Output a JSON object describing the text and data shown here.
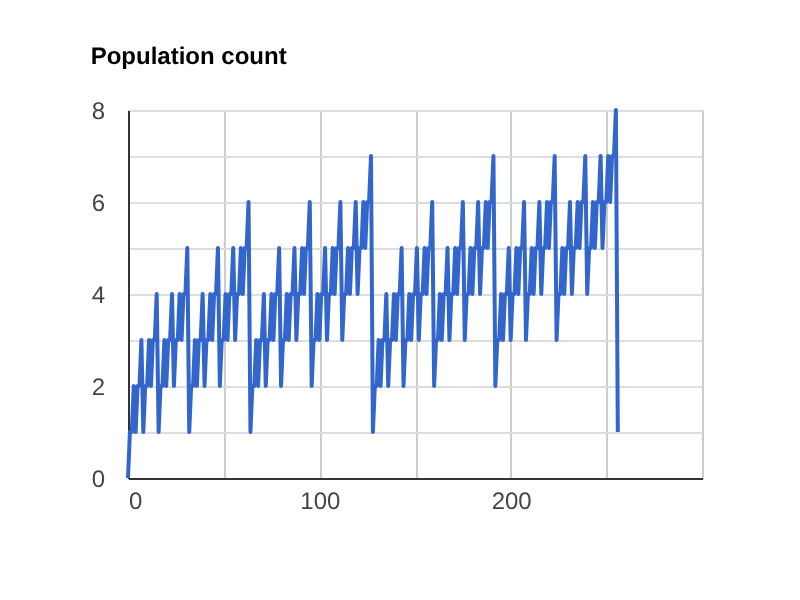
{
  "chart_data": {
    "type": "line",
    "title": "Population count",
    "x": [
      0,
      1,
      2,
      3,
      4,
      5,
      6,
      7,
      8,
      9,
      10,
      11,
      12,
      13,
      14,
      15,
      16,
      17,
      18,
      19,
      20,
      21,
      22,
      23,
      24,
      25,
      26,
      27,
      28,
      29,
      30,
      31,
      32,
      33,
      34,
      35,
      36,
      37,
      38,
      39,
      40,
      41,
      42,
      43,
      44,
      45,
      46,
      47,
      48,
      49,
      50,
      51,
      52,
      53,
      54,
      55,
      56,
      57,
      58,
      59,
      60,
      61,
      62,
      63,
      64,
      65,
      66,
      67,
      68,
      69,
      70,
      71,
      72,
      73,
      74,
      75,
      76,
      77,
      78,
      79,
      80,
      81,
      82,
      83,
      84,
      85,
      86,
      87,
      88,
      89,
      90,
      91,
      92,
      93,
      94,
      95,
      96,
      97,
      98,
      99,
      100,
      101,
      102,
      103,
      104,
      105,
      106,
      107,
      108,
      109,
      110,
      111,
      112,
      113,
      114,
      115,
      116,
      117,
      118,
      119,
      120,
      121,
      122,
      123,
      124,
      125,
      126,
      127,
      128,
      129,
      130,
      131,
      132,
      133,
      134,
      135,
      136,
      137,
      138,
      139,
      140,
      141,
      142,
      143,
      144,
      145,
      146,
      147,
      148,
      149,
      150,
      151,
      152,
      153,
      154,
      155,
      156,
      157,
      158,
      159,
      160,
      161,
      162,
      163,
      164,
      165,
      166,
      167,
      168,
      169,
      170,
      171,
      172,
      173,
      174,
      175,
      176,
      177,
      178,
      179,
      180,
      181,
      182,
      183,
      184,
      185,
      186,
      187,
      188,
      189,
      190,
      191,
      192,
      193,
      194,
      195,
      196,
      197,
      198,
      199,
      200,
      201,
      202,
      203,
      204,
      205,
      206,
      207,
      208,
      209,
      210,
      211,
      212,
      213,
      214,
      215,
      216,
      217,
      218,
      219,
      220,
      221,
      222,
      223,
      224,
      225,
      226,
      227,
      228,
      229,
      230,
      231,
      232,
      233,
      234,
      235,
      236,
      237,
      238,
      239,
      240,
      241,
      242,
      243,
      244,
      245,
      246,
      247,
      248,
      249,
      250,
      251,
      252,
      253,
      254,
      255,
      256
    ],
    "series": [
      {
        "color": "#3366cc",
        "values": [
          0,
          1,
          1,
          2,
          1,
          2,
          2,
          3,
          1,
          2,
          2,
          3,
          2,
          3,
          3,
          4,
          1,
          2,
          2,
          3,
          2,
          3,
          3,
          4,
          2,
          3,
          3,
          4,
          3,
          4,
          4,
          5,
          1,
          2,
          2,
          3,
          2,
          3,
          3,
          4,
          2,
          3,
          3,
          4,
          3,
          4,
          4,
          5,
          2,
          3,
          3,
          4,
          3,
          4,
          4,
          5,
          3,
          4,
          4,
          5,
          4,
          5,
          5,
          6,
          1,
          2,
          2,
          3,
          2,
          3,
          3,
          4,
          2,
          3,
          3,
          4,
          3,
          4,
          4,
          5,
          2,
          3,
          3,
          4,
          3,
          4,
          4,
          5,
          3,
          4,
          4,
          5,
          4,
          5,
          5,
          6,
          2,
          3,
          3,
          4,
          3,
          4,
          4,
          5,
          3,
          4,
          4,
          5,
          4,
          5,
          5,
          6,
          3,
          4,
          4,
          5,
          4,
          5,
          5,
          6,
          4,
          5,
          5,
          6,
          5,
          6,
          6,
          7,
          1,
          2,
          2,
          3,
          2,
          3,
          3,
          4,
          2,
          3,
          3,
          4,
          3,
          4,
          4,
          5,
          2,
          3,
          3,
          4,
          3,
          4,
          4,
          5,
          3,
          4,
          4,
          5,
          4,
          5,
          5,
          6,
          2,
          3,
          3,
          4,
          3,
          4,
          4,
          5,
          3,
          4,
          4,
          5,
          4,
          5,
          5,
          6,
          3,
          4,
          4,
          5,
          4,
          5,
          5,
          6,
          4,
          5,
          5,
          6,
          5,
          6,
          6,
          7,
          2,
          3,
          3,
          4,
          3,
          4,
          4,
          5,
          3,
          4,
          4,
          5,
          4,
          5,
          5,
          6,
          3,
          4,
          4,
          5,
          4,
          5,
          5,
          6,
          4,
          5,
          5,
          6,
          5,
          6,
          6,
          7,
          3,
          4,
          4,
          5,
          4,
          5,
          5,
          6,
          4,
          5,
          5,
          6,
          5,
          6,
          6,
          7,
          4,
          5,
          5,
          6,
          5,
          6,
          6,
          7,
          5,
          6,
          6,
          7,
          6,
          7,
          7,
          8,
          1
        ]
      }
    ],
    "xlim": [
      0,
      300
    ],
    "xticks": [
      0,
      {
        "value": 50,
        "label": null
      },
      100,
      {
        "value": 150,
        "label": null
      },
      200,
      {
        "value": 250,
        "label": null
      },
      {
        "value": 300,
        "label": null
      }
    ],
    "ylim": [
      0,
      8
    ],
    "yticks": [
      0,
      {
        "value": 1,
        "label": null
      },
      2,
      {
        "value": 3,
        "label": null
      },
      4,
      {
        "value": 5,
        "label": null
      },
      6,
      {
        "value": 7,
        "label": null
      },
      8
    ],
    "grid": true,
    "legend": false
  }
}
